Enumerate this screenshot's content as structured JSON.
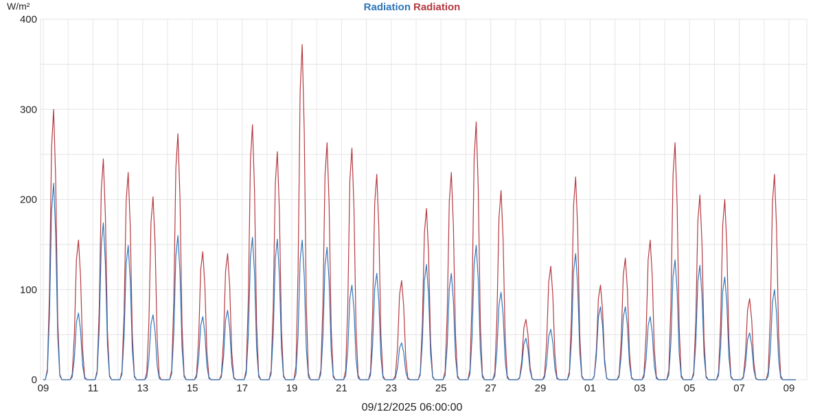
{
  "chart_data": {
    "type": "line",
    "title_parts": [
      {
        "text": "Radiation",
        "color": "#2e75b6"
      },
      {
        "text": "Radiation",
        "color": "#b5383f"
      }
    ],
    "ylabel": "W/m²",
    "xlabel": "09/12/2025 06:00:00",
    "ylim": [
      0,
      400
    ],
    "y_ticks": [
      "0",
      "100",
      "200",
      "300",
      "400"
    ],
    "x_ticks": [
      "09",
      "11",
      "13",
      "15",
      "17",
      "19",
      "21",
      "23",
      "25",
      "27",
      "29",
      "01",
      "03",
      "05",
      "07",
      "09"
    ],
    "grid": true,
    "series": [
      {
        "color": "#b5383f",
        "daily_peaks": [
          300,
          155,
          245,
          230,
          203,
          273,
          142,
          140,
          283,
          253,
          372,
          263,
          257,
          228,
          110,
          190,
          230,
          286,
          210,
          67,
          126,
          225,
          105,
          135,
          155,
          263,
          205,
          200,
          90,
          228
        ]
      },
      {
        "color": "#2e75b6",
        "daily_peaks": [
          218,
          74,
          174,
          149,
          72,
          160,
          70,
          77,
          158,
          156,
          155,
          147,
          105,
          118,
          41,
          128,
          118,
          149,
          97,
          46,
          56,
          140,
          81,
          81,
          70,
          133,
          127,
          114,
          52,
          100
        ]
      }
    ]
  }
}
